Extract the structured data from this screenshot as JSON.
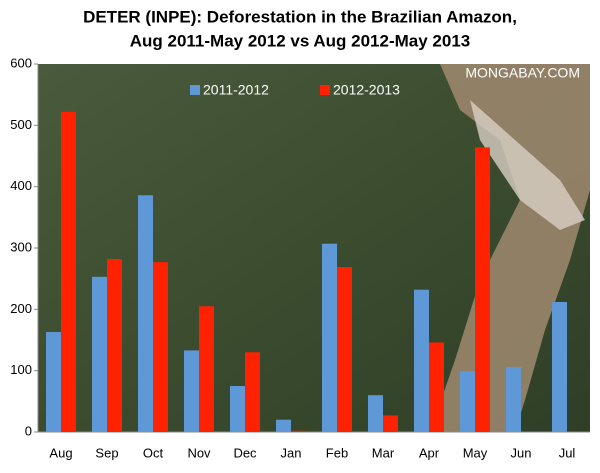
{
  "chart_data": {
    "type": "bar",
    "title": [
      "DETER (INPE): Deforestation in the Brazilian Amazon,",
      "Aug 2011-May 2012 vs Aug 2012-May 2013"
    ],
    "watermark": "MONGABAY.COM",
    "categories": [
      "Aug",
      "Sep",
      "Oct",
      "Nov",
      "Dec",
      "Jan",
      "Feb",
      "Mar",
      "Apr",
      "May",
      "Jun",
      "Jul"
    ],
    "series": [
      {
        "name": "2011-2012",
        "color": "#5f98d6",
        "values": [
          163,
          253,
          386,
          133,
          75,
          20,
          307,
          60,
          232,
          99,
          106,
          212
        ]
      },
      {
        "name": "2012-2013",
        "color": "#ff2200",
        "values": [
          522,
          282,
          277,
          205,
          130,
          2,
          269,
          27,
          146,
          464,
          null,
          null
        ]
      }
    ],
    "ylim": [
      0,
      600
    ],
    "yticks": [
      0,
      100,
      200,
      300,
      400,
      500,
      600
    ],
    "grid": false,
    "legend": "top"
  }
}
